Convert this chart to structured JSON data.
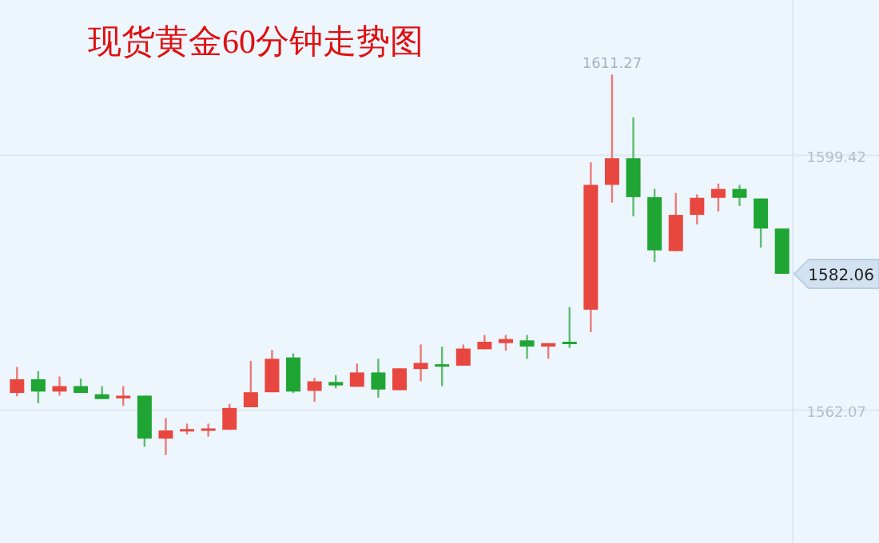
{
  "chart_data": {
    "type": "candlestick",
    "title": "现货黄金60分钟走势图",
    "categories": [
      null,
      null,
      null,
      null,
      null,
      null,
      null,
      null,
      null,
      null,
      null,
      null,
      null,
      null,
      null,
      null,
      null,
      null,
      null,
      null,
      null,
      null,
      null,
      null,
      null,
      null,
      null,
      null,
      null,
      null,
      null,
      null,
      null,
      null,
      null,
      null,
      null
    ],
    "ohlc": [
      [
        1564.6,
        1568.4,
        1564.1,
        1566.6
      ],
      [
        1566.6,
        1567.8,
        1563.1,
        1564.8
      ],
      [
        1564.8,
        1567.0,
        1564.2,
        1565.6
      ],
      [
        1565.6,
        1566.7,
        1564.6,
        1564.6
      ],
      [
        1564.4,
        1565.6,
        1563.7,
        1563.7
      ],
      [
        1563.8,
        1565.6,
        1562.7,
        1564.2
      ],
      [
        1564.2,
        1564.2,
        1556.7,
        1557.9
      ],
      [
        1557.9,
        1560.9,
        1555.5,
        1559.1
      ],
      [
        1559.0,
        1560.1,
        1558.5,
        1559.3
      ],
      [
        1559.2,
        1560.1,
        1558.2,
        1559.4
      ],
      [
        1559.2,
        1563.0,
        1559.2,
        1562.4
      ],
      [
        1562.5,
        1569.3,
        1562.5,
        1564.7
      ],
      [
        1564.7,
        1570.9,
        1564.7,
        1569.6
      ],
      [
        1569.8,
        1570.4,
        1564.6,
        1564.8
      ],
      [
        1564.9,
        1566.8,
        1563.3,
        1566.3
      ],
      [
        1566.2,
        1567.2,
        1565.3,
        1565.7
      ],
      [
        1565.5,
        1568.9,
        1565.5,
        1567.6
      ],
      [
        1567.6,
        1569.6,
        1563.9,
        1565.1
      ],
      [
        1565.0,
        1568.2,
        1565.0,
        1568.2
      ],
      [
        1568.1,
        1571.7,
        1566.3,
        1569.0
      ],
      [
        1568.8,
        1571.4,
        1565.6,
        1568.6
      ],
      [
        1568.6,
        1571.7,
        1568.6,
        1571.1
      ],
      [
        1571.0,
        1573.1,
        1571.0,
        1572.1
      ],
      [
        1571.9,
        1573.1,
        1570.8,
        1572.5
      ],
      [
        1572.3,
        1573.1,
        1569.6,
        1571.4
      ],
      [
        1571.4,
        1571.9,
        1569.6,
        1571.9
      ],
      [
        1572.1,
        1577.2,
        1571.2,
        1571.8
      ],
      [
        1576.8,
        1598.4,
        1573.5,
        1595.1
      ],
      [
        1595.1,
        1611.27,
        1592.5,
        1599.0
      ],
      [
        1599.0,
        1605.0,
        1590.5,
        1593.3
      ],
      [
        1593.3,
        1594.5,
        1583.8,
        1585.5
      ],
      [
        1585.4,
        1593.9,
        1585.4,
        1590.7
      ],
      [
        1590.7,
        1593.7,
        1589.3,
        1593.2
      ],
      [
        1593.2,
        1595.3,
        1591.2,
        1594.5
      ],
      [
        1594.5,
        1595.1,
        1592.0,
        1593.2
      ],
      [
        1593.1,
        1593.1,
        1585.9,
        1588.7
      ],
      [
        1588.7,
        1588.7,
        1582.06,
        1582.06
      ]
    ],
    "colors": [
      "#e8473f",
      "#1fa533",
      "#e8473f",
      "#1fa533",
      "#1fa533",
      "#e8473f",
      "#1fa533",
      "#e8473f",
      "#e8473f",
      "#e8473f",
      "#e8473f",
      "#e8473f",
      "#e8473f",
      "#1fa533",
      "#e8473f",
      "#1fa533",
      "#e8473f",
      "#1fa533",
      "#e8473f",
      "#e8473f",
      "#1fa533",
      "#e8473f",
      "#e8473f",
      "#e8473f",
      "#1fa533",
      "#e8473f",
      "#1fa533",
      "#e8473f",
      "#e8473f",
      "#1fa533",
      "#1fa533",
      "#e8473f",
      "#e8473f",
      "#e8473f",
      "#1fa533",
      "#1fa533",
      "#1fa533"
    ],
    "ylim": [
      1542.6,
      1622.2
    ],
    "yticks": [
      1599.42,
      1562.07
    ],
    "grid": "y",
    "annotations": [
      {
        "text": "1611.27",
        "y": 1611.27
      },
      "1582.06"
    ]
  }
}
